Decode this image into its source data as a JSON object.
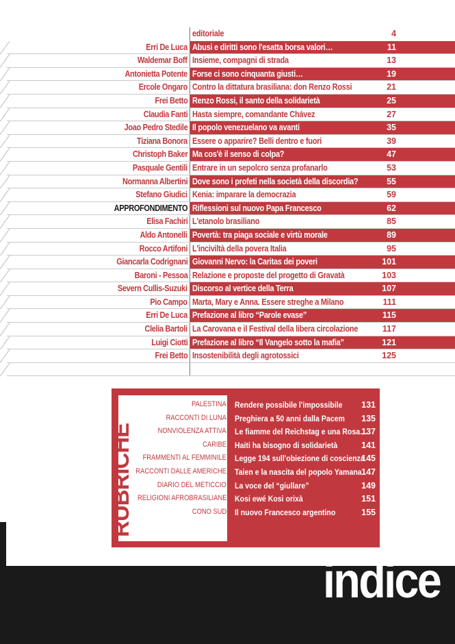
{
  "toc": [
    {
      "author": "",
      "title": "editoriale",
      "page": "4"
    },
    {
      "author": "Erri De Luca",
      "title": "Abusi e diritti sono l'esatta borsa valori…",
      "page": "11"
    },
    {
      "author": "Waldemar Boff",
      "title": "Insieme, compagni di strada",
      "page": "13"
    },
    {
      "author": "Antonietta Potente",
      "title": "Forse ci sono cinquanta giusti…",
      "page": "19"
    },
    {
      "author": "Ercole Ongaro",
      "title": "Contro la dittatura brasiliana: don Renzo Rossi",
      "page": "21"
    },
    {
      "author": "Frei Betto",
      "title": "Renzo Rossi, il santo della solidarietà",
      "page": "25"
    },
    {
      "author": "Claudia Fanti",
      "title": "Hasta siempre, comandante Chávez",
      "page": "27"
    },
    {
      "author": "Joao Pedro Stedile",
      "title": "Il popolo venezuelano va avanti",
      "page": "35"
    },
    {
      "author": "Tiziana Bonora",
      "title": "Essere o apparire? Belli dentro e fuori",
      "page": "39"
    },
    {
      "author": "Christoph Baker",
      "title": "Ma cos'è il senso di colpa?",
      "page": "47"
    },
    {
      "author": "Pasquale Gentili",
      "title": "Entrare in un sepolcro senza profanarlo",
      "page": "53"
    },
    {
      "author": "Normanna Albertini",
      "title": "Dove sono i profeti nella società della discordia?",
      "page": "55"
    },
    {
      "author": "Stefano Giudici",
      "title": "Kenia: imparare la democrazia",
      "page": "59"
    },
    {
      "author": "APPROFONDIMENTO",
      "title": "Riflessioni sul nuovo Papa Francesco",
      "page": "62"
    },
    {
      "author": "Elisa Fachiri",
      "title": "L'etanolo brasiliano",
      "page": "85"
    },
    {
      "author": "Aldo Antonelli",
      "title": "Povertà: tra piaga sociale e virtù morale",
      "page": "89"
    },
    {
      "author": "Rocco Artifoni",
      "title": "L'inciviltà della povera Italia",
      "page": "95"
    },
    {
      "author": "Giancarla Codrignani",
      "title": "Giovanni Nervo: la Caritas dei poveri",
      "page": "101"
    },
    {
      "author": "Baroni - Pessoa",
      "title": "Relazione e proposte del progetto di Gravatà",
      "page": "103"
    },
    {
      "author": "Severn Cullis-Suzuki",
      "title": "Discorso al vertice della Terra",
      "page": "107"
    },
    {
      "author": "Pio Campo",
      "title": "Marta, Mary e Anna. Essere streghe a Milano",
      "page": "111"
    },
    {
      "author": "Erri De Luca",
      "title": "Prefazione al libro “Parole evase”",
      "page": "115"
    },
    {
      "author": "Clelia Bartoli",
      "title": "La Carovana e il Festival della libera circolazione",
      "page": "117"
    },
    {
      "author": "Luigi Ciotti",
      "title": "Prefazione al libro “Il Vangelo sotto la mafia”",
      "page": "121"
    },
    {
      "author": "Frei Betto",
      "title": "Insostenibilità degli agrotossici",
      "page": "125"
    }
  ],
  "rubriche": {
    "heading": "RUBRICHE",
    "items": [
      {
        "category": "PALESTINA",
        "title": "Rendere possibile l'impossibile",
        "page": "131"
      },
      {
        "category": "RACCONTI DI LUNA",
        "title": "Preghiera a 50 anni dalla Pacem",
        "page": "135"
      },
      {
        "category": "NONVIOLENZA ATTIVA",
        "title": "Le fiamme del Reichstag e una Rosa…",
        "page": "137"
      },
      {
        "category": "CARIBE",
        "title": "Haiti ha bisogno di solidarietà",
        "page": "141"
      },
      {
        "category": "FRAMMENTI AL FEMMINILE",
        "title": "Legge 194 sull'obiezione di coscienza",
        "page": "145"
      },
      {
        "category": "RACCONTI DALLE AMERICHE",
        "title": "Taien e la nascita del popolo Yamana",
        "page": "147"
      },
      {
        "category": "DIARIO DEL METICCIO",
        "title": "La voce del “giullare”",
        "page": "149"
      },
      {
        "category": "RELIGIONI AFROBRASILIANE",
        "title": "Kosi ewé Kosi orixà",
        "page": "151"
      },
      {
        "category": "CONO SUD",
        "title": "Il nuovo Francesco argentino",
        "page": "155"
      }
    ]
  },
  "footer": {
    "label": "indice"
  },
  "colors": {
    "accent": "#c1393f",
    "dark": "#1a1a1a"
  }
}
